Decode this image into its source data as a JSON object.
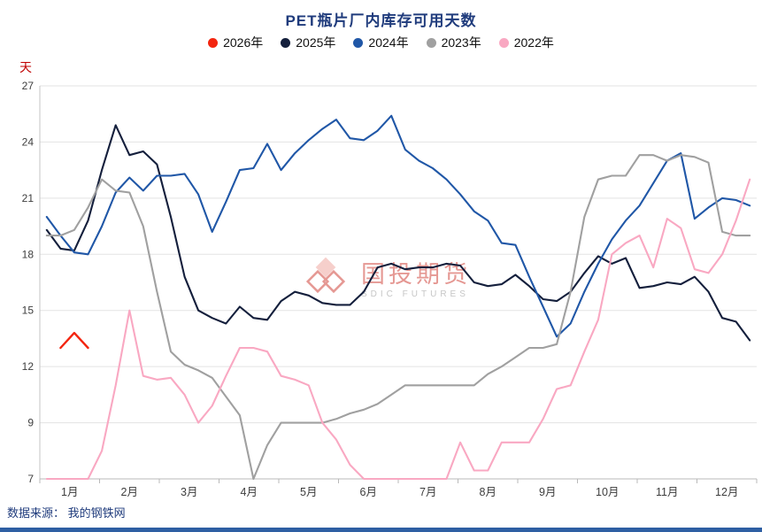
{
  "chart_data": {
    "type": "line",
    "title": "PET瓶片厂内库存可用天数",
    "ylabel": "天",
    "y_ticks": [
      7,
      9,
      12,
      15,
      18,
      21,
      24,
      27
    ],
    "x_tick_labels": [
      "1月",
      "2月",
      "3月",
      "4月",
      "5月",
      "6月",
      "7月",
      "8月",
      "9月",
      "10月",
      "11月",
      "12月"
    ],
    "points_per_year": 52,
    "legend_position": "top",
    "grid": "horizontal",
    "series": [
      {
        "name": "2026年",
        "color": "#f3250f",
        "start": 1,
        "width": 2.4,
        "values": [
          13.0,
          13.8,
          13.0
        ]
      },
      {
        "name": "2025年",
        "color": "#141f3c",
        "start": 0,
        "width": 2.1,
        "values": [
          19.3,
          18.3,
          18.2,
          19.8,
          22.5,
          24.9,
          23.3,
          23.5,
          22.8,
          20.0,
          16.8,
          15.0,
          14.6,
          14.3,
          15.2,
          14.6,
          14.5,
          15.5,
          16.0,
          15.8,
          15.4,
          15.3,
          15.3,
          16.0,
          17.3,
          17.5,
          17.2,
          17.3,
          17.3,
          17.5,
          17.4,
          16.5,
          16.3,
          16.4,
          16.9,
          16.3,
          15.6,
          15.5,
          16.0,
          17.0,
          17.9,
          17.5,
          17.8,
          16.2,
          16.3,
          16.5,
          16.4,
          16.8,
          16.0,
          14.6,
          14.4,
          13.4
        ]
      },
      {
        "name": "2024年",
        "color": "#2057a7",
        "start": 0,
        "width": 2.1,
        "values": [
          20.0,
          19.0,
          18.1,
          18.0,
          19.5,
          21.3,
          22.1,
          21.4,
          22.2,
          22.2,
          22.3,
          21.2,
          19.2,
          20.8,
          22.5,
          22.6,
          23.9,
          22.5,
          23.4,
          24.1,
          24.7,
          25.2,
          24.2,
          24.1,
          24.6,
          25.4,
          23.6,
          23.0,
          22.6,
          22.0,
          21.2,
          20.3,
          19.8,
          18.6,
          18.5,
          16.8,
          15.2,
          13.6,
          14.3,
          16.0,
          17.5,
          18.8,
          19.8,
          20.6,
          21.8,
          23.0,
          23.4,
          19.9,
          20.5,
          21.0,
          20.9,
          20.6
        ]
      },
      {
        "name": "2023年",
        "color": "#a0a0a0",
        "start": 0,
        "width": 2.1,
        "values": [
          19.0,
          19.0,
          19.3,
          20.5,
          22.0,
          21.4,
          21.3,
          19.5,
          16.0,
          12.8,
          12.1,
          11.8,
          11.4,
          10.4,
          9.4,
          7.0,
          8.2,
          9.0,
          9.0,
          9.0,
          9.0,
          9.2,
          9.5,
          9.7,
          10.0,
          10.5,
          11.0,
          11.0,
          11.0,
          11.0,
          11.0,
          11.0,
          11.6,
          12.0,
          12.5,
          13.0,
          13.0,
          13.2,
          16.0,
          20.0,
          22.0,
          22.2,
          22.2,
          23.3,
          23.3,
          23.0,
          23.3,
          23.2,
          22.9,
          19.2,
          19.0,
          19.0
        ]
      },
      {
        "name": "2022年",
        "color": "#f9a8c2",
        "start": 0,
        "width": 2.1,
        "values": [
          7.0,
          7.0,
          7.0,
          7.0,
          8.0,
          11.0,
          15.0,
          11.5,
          11.3,
          11.4,
          10.5,
          9.0,
          9.9,
          11.5,
          13.0,
          13.0,
          12.8,
          11.5,
          11.3,
          11.0,
          9.0,
          8.4,
          7.5,
          7.0,
          7.0,
          7.0,
          7.0,
          7.0,
          7.0,
          7.0,
          8.3,
          7.3,
          7.3,
          8.3,
          8.3,
          8.3,
          9.2,
          10.8,
          11.0,
          12.8,
          14.5,
          18.0,
          18.6,
          19.0,
          17.3,
          19.9,
          19.4,
          17.2,
          17.0,
          18.0,
          19.8,
          22.0
        ]
      }
    ]
  },
  "source_note": "数据来源： 我的钢铁网",
  "watermark": {
    "brand": "国投期货",
    "brand_en": "SDIC FUTURES"
  }
}
